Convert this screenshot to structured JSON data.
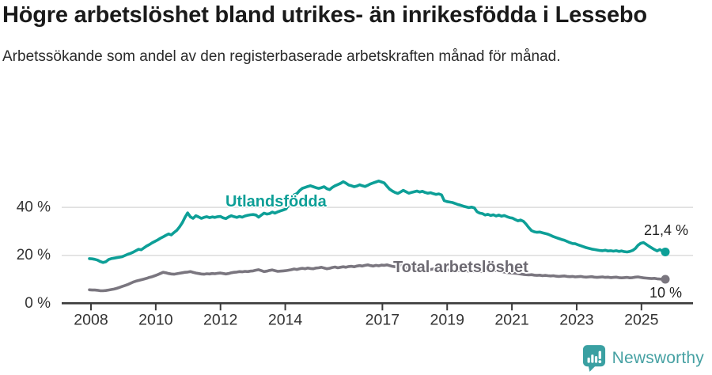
{
  "header": {
    "title": "Högre arbetslöshet bland utrikes- än inrikesfödda i Lessebo",
    "subtitle": "Arbetssökande som andel av den registerbaserade arbetskraften månad för månad."
  },
  "chart_data": {
    "type": "line",
    "unit": "percent",
    "x_start": "2008-01",
    "x_end": "2025-08",
    "x_resolution": "monthly",
    "ylim": [
      0,
      55
    ],
    "grid": "horizontal-only",
    "y_ticks": [
      {
        "value": 0,
        "label": "0 %"
      },
      {
        "value": 20,
        "label": "20 %"
      },
      {
        "value": 40,
        "label": "40 %"
      }
    ],
    "x_tick_years": [
      {
        "year": 2008,
        "label": "2008"
      },
      {
        "year": 2010,
        "label": "2010"
      },
      {
        "year": 2012,
        "label": "2012"
      },
      {
        "year": 2014,
        "label": "2014"
      },
      {
        "year": 2017,
        "label": "2017"
      },
      {
        "year": 2019,
        "label": "2019"
      },
      {
        "year": 2021,
        "label": "2021"
      },
      {
        "year": 2023,
        "label": "2023"
      },
      {
        "year": 2025,
        "label": "2025"
      }
    ],
    "series": [
      {
        "name": "Utlandsfödda",
        "color": "#0d9f97",
        "end_label": "21,4 %",
        "last_value": 21.4,
        "values": [
          18.6,
          18.5,
          18.3,
          18.0,
          17.4,
          17.0,
          17.3,
          18.2,
          18.6,
          18.8,
          19.0,
          19.2,
          19.4,
          19.9,
          20.4,
          20.8,
          21.3,
          21.9,
          22.5,
          22.3,
          23.1,
          23.9,
          24.5,
          25.2,
          25.8,
          26.4,
          27.1,
          27.7,
          28.3,
          28.9,
          28.5,
          29.5,
          30.4,
          31.8,
          33.5,
          35.8,
          37.7,
          36.0,
          35.4,
          36.5,
          36.0,
          35.4,
          35.8,
          36.1,
          35.7,
          36.0,
          35.8,
          36.1,
          36.2,
          35.6,
          35.3,
          36.0,
          36.5,
          36.1,
          35.8,
          36.2,
          35.9,
          36.4,
          36.7,
          36.9,
          37.0,
          36.8,
          35.9,
          36.8,
          37.6,
          37.2,
          37.4,
          38.0,
          37.6,
          38.1,
          38.5,
          38.9,
          39.3,
          41.0,
          43.0,
          45.2,
          45.7,
          47.0,
          47.9,
          48.3,
          48.7,
          49.0,
          48.6,
          48.2,
          47.9,
          48.2,
          48.6,
          47.8,
          47.4,
          48.3,
          49.0,
          49.5,
          50.0,
          50.7,
          50.1,
          49.3,
          49.0,
          48.6,
          48.9,
          49.4,
          49.0,
          48.7,
          49.2,
          49.8,
          50.2,
          50.6,
          51.0,
          50.6,
          50.2,
          48.8,
          47.6,
          46.8,
          46.2,
          45.8,
          46.4,
          47.1,
          46.5,
          45.9,
          46.2,
          46.5,
          46.8,
          46.4,
          46.7,
          46.2,
          45.9,
          46.1,
          45.7,
          45.4,
          45.6,
          45.2,
          42.8,
          42.4,
          42.2,
          42.0,
          41.6,
          41.2,
          40.9,
          40.5,
          40.2,
          39.9,
          40.1,
          39.8,
          38.2,
          37.6,
          37.4,
          36.8,
          37.1,
          36.6,
          36.9,
          36.4,
          36.8,
          36.3,
          36.6,
          36.1,
          35.7,
          35.5,
          34.9,
          34.4,
          34.7,
          34.2,
          33.0,
          31.5,
          30.3,
          29.8,
          29.6,
          29.7,
          29.4,
          29.1,
          28.8,
          28.3,
          27.8,
          27.4,
          27.0,
          26.6,
          26.3,
          25.8,
          25.3,
          24.9,
          24.8,
          24.4,
          24.0,
          23.6,
          23.2,
          22.9,
          22.6,
          22.4,
          22.2,
          22.0,
          21.9,
          22.1,
          21.8,
          21.9,
          21.7,
          21.9,
          21.6,
          21.8,
          21.5,
          21.4,
          21.6,
          22.0,
          22.8,
          24.2,
          25.0,
          25.3,
          24.6,
          23.8,
          23.1,
          22.4,
          21.8,
          22.4,
          21.7,
          21.4
        ]
      },
      {
        "name": "Total arbetslöshet",
        "color": "#7a767f",
        "end_label": "10 %",
        "last_value": 10,
        "values": [
          5.6,
          5.5,
          5.5,
          5.4,
          5.2,
          5.2,
          5.3,
          5.5,
          5.7,
          5.9,
          6.2,
          6.6,
          7.0,
          7.4,
          7.8,
          8.3,
          8.8,
          9.2,
          9.5,
          9.8,
          10.1,
          10.4,
          10.8,
          11.1,
          11.5,
          11.9,
          12.4,
          12.9,
          12.7,
          12.4,
          12.2,
          12.1,
          12.3,
          12.5,
          12.7,
          12.9,
          13.0,
          13.2,
          12.9,
          12.6,
          12.4,
          12.2,
          12.1,
          12.3,
          12.2,
          12.4,
          12.3,
          12.5,
          12.6,
          12.4,
          12.2,
          12.4,
          12.7,
          12.9,
          13.0,
          13.2,
          13.1,
          13.3,
          13.2,
          13.4,
          13.5,
          13.8,
          14.0,
          13.6,
          13.2,
          13.4,
          13.7,
          13.9,
          13.6,
          13.3,
          13.4,
          13.5,
          13.6,
          13.8,
          14.0,
          14.3,
          14.1,
          14.4,
          14.6,
          14.4,
          14.7,
          14.5,
          14.4,
          14.7,
          14.8,
          15.0,
          14.7,
          14.4,
          14.6,
          14.9,
          15.1,
          14.8,
          15.0,
          15.2,
          15.0,
          15.3,
          15.4,
          15.2,
          15.5,
          15.7,
          15.5,
          15.8,
          16.0,
          15.7,
          15.5,
          15.8,
          15.6,
          15.9,
          15.8,
          16.0,
          15.7,
          15.4,
          15.2,
          15.4,
          15.6,
          15.3,
          15.0,
          14.8,
          14.9,
          14.7,
          14.6,
          14.4,
          14.5,
          14.2,
          14.0,
          14.1,
          14.3,
          14.0,
          13.8,
          13.9,
          13.7,
          13.8,
          13.9,
          14.0,
          13.8,
          13.6,
          13.7,
          13.5,
          13.6,
          13.4,
          13.3,
          13.4,
          13.2,
          13.3,
          13.4,
          13.6,
          13.8,
          14.0,
          13.8,
          13.6,
          13.4,
          13.2,
          13.0,
          12.8,
          12.7,
          12.6,
          12.5,
          12.4,
          12.2,
          12.0,
          11.9,
          11.8,
          11.9,
          11.7,
          11.6,
          11.7,
          11.5,
          11.6,
          11.5,
          11.4,
          11.5,
          11.3,
          11.2,
          11.3,
          11.4,
          11.2,
          11.1,
          11.2,
          11.0,
          11.1,
          11.2,
          11.0,
          10.9,
          11.0,
          11.1,
          10.9,
          10.8,
          10.9,
          11.0,
          10.8,
          10.9,
          10.7,
          10.8,
          10.9,
          10.7,
          10.6,
          10.7,
          10.8,
          10.6,
          10.7,
          10.9,
          11.0,
          10.8,
          10.6,
          10.5,
          10.4,
          10.3,
          10.4,
          10.2,
          10.1,
          10.0,
          10.0
        ]
      }
    ],
    "colors": {
      "grid": "#dcdcdc",
      "axis": "#3b3b3b",
      "axis_text": "#333333"
    }
  },
  "footer": {
    "brand": "Newsworthy",
    "brand_color": "#46a1a3",
    "logo_icon": "bar-chart-exclamation-bubble"
  }
}
